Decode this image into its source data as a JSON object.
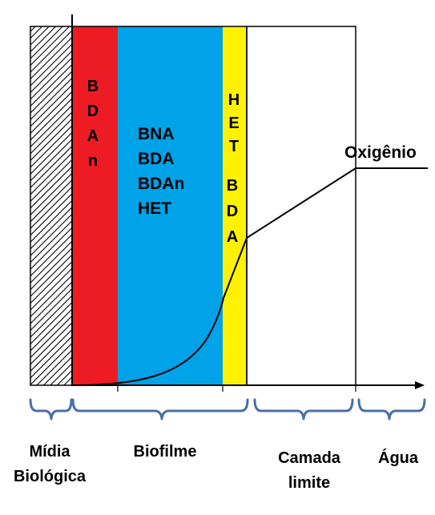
{
  "layers": {
    "red": {
      "lines": [
        "B",
        "D",
        "A",
        "n"
      ],
      "color": "#ed1c24"
    },
    "blue": {
      "lines": [
        "BNA",
        "BDA",
        "BDAn",
        "HET"
      ],
      "color": "#00a2e8"
    },
    "yellow": {
      "lines": [
        "H",
        "E",
        "T",
        "B",
        "D",
        "A"
      ],
      "color": "#fff200"
    }
  },
  "curve_label": "Oxigênio",
  "brace_labels": {
    "midia": [
      "Mídia",
      "Biológica"
    ],
    "biofilme": "Biofilme",
    "camada": [
      "Camada",
      "limite"
    ],
    "agua": "Água"
  },
  "colors": {
    "brace": "#4a6fa5",
    "hatch": "#000000"
  }
}
